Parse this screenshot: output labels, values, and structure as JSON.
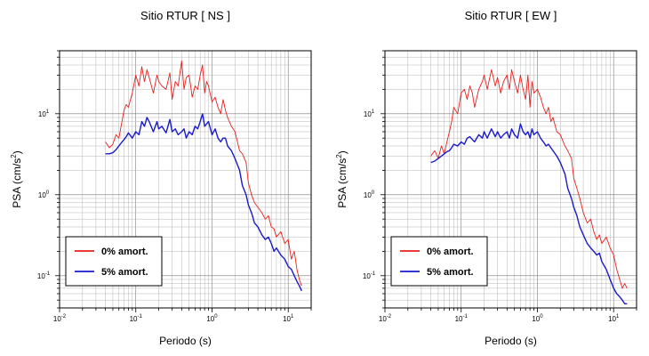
{
  "chart_data": [
    {
      "type": "line",
      "title": "Sitio RTUR [ NS ]",
      "xlabel": "Periodo (s)",
      "ylabel": {
        "base": "PSA (cm/s",
        "exp": "2",
        "close": ")"
      },
      "x_scale": "log",
      "y_scale": "log",
      "xlim": [
        0.01,
        20
      ],
      "ylim": [
        0.04,
        60
      ],
      "xticks": [
        {
          "base": "10",
          "exp": "-2",
          "value": 0.01
        },
        {
          "base": "10",
          "exp": "-1",
          "value": 0.1
        },
        {
          "base": "10",
          "exp": "0",
          "value": 1
        },
        {
          "base": "10",
          "exp": "1",
          "value": 10
        }
      ],
      "yticks": [
        {
          "base": "10",
          "exp": "-1",
          "value": 0.1
        },
        {
          "base": "10",
          "exp": "0",
          "value": 1
        },
        {
          "base": "10",
          "exp": "1",
          "value": 10
        }
      ],
      "grid": true,
      "legend_position": "bottom-left",
      "series": [
        {
          "name": "0% amort.",
          "color": "#e8201e",
          "x": [
            0.04,
            0.045,
            0.05,
            0.055,
            0.06,
            0.065,
            0.07,
            0.075,
            0.08,
            0.09,
            0.1,
            0.11,
            0.12,
            0.13,
            0.14,
            0.15,
            0.17,
            0.19,
            0.2,
            0.22,
            0.25,
            0.28,
            0.3,
            0.33,
            0.36,
            0.4,
            0.43,
            0.46,
            0.5,
            0.55,
            0.6,
            0.65,
            0.7,
            0.75,
            0.8,
            0.85,
            0.9,
            1.0,
            1.1,
            1.2,
            1.3,
            1.4,
            1.5,
            1.6,
            1.8,
            2.0,
            2.3,
            2.5,
            2.8,
            3.0,
            3.3,
            3.6,
            4.0,
            4.5,
            5.0,
            5.5,
            6.0,
            6.5,
            7.0,
            8.0,
            9.0,
            10.0,
            11.0,
            12.0,
            13.0,
            14.0,
            15.0
          ],
          "y": [
            4.5,
            3.8,
            4.2,
            5.5,
            5.0,
            7.5,
            11.0,
            13.0,
            12.0,
            18.0,
            30.0,
            22.0,
            38.0,
            25.0,
            35.0,
            28.0,
            18.0,
            30.0,
            25.0,
            22.0,
            20.0,
            32.0,
            15.0,
            25.0,
            22.0,
            45.0,
            20.0,
            28.0,
            30.0,
            16.0,
            22.0,
            20.0,
            30.0,
            40.0,
            18.0,
            25.0,
            22.0,
            14.0,
            16.0,
            12.0,
            10.0,
            15.0,
            11.0,
            9.0,
            7.0,
            6.0,
            3.5,
            3.2,
            2.5,
            1.4,
            1.0,
            0.8,
            0.7,
            0.6,
            0.5,
            0.55,
            0.4,
            0.38,
            0.3,
            0.35,
            0.25,
            0.28,
            0.16,
            0.2,
            0.12,
            0.09,
            0.075
          ]
        },
        {
          "name": "5% amort.",
          "color": "#1a1acc",
          "x": [
            0.04,
            0.045,
            0.05,
            0.055,
            0.06,
            0.065,
            0.07,
            0.075,
            0.08,
            0.09,
            0.1,
            0.11,
            0.12,
            0.13,
            0.14,
            0.15,
            0.17,
            0.19,
            0.2,
            0.22,
            0.25,
            0.28,
            0.3,
            0.33,
            0.36,
            0.4,
            0.43,
            0.46,
            0.5,
            0.55,
            0.6,
            0.65,
            0.7,
            0.75,
            0.8,
            0.85,
            0.9,
            1.0,
            1.1,
            1.2,
            1.3,
            1.4,
            1.5,
            1.6,
            1.8,
            2.0,
            2.3,
            2.5,
            2.8,
            3.0,
            3.3,
            3.6,
            4.0,
            4.5,
            5.0,
            5.5,
            6.0,
            6.5,
            7.0,
            8.0,
            9.0,
            10.0,
            11.0,
            12.0,
            13.0,
            14.0,
            15.0
          ],
          "y": [
            3.2,
            3.2,
            3.3,
            3.6,
            4.0,
            4.4,
            4.8,
            5.2,
            5.8,
            5.0,
            6.0,
            5.5,
            8.0,
            7.0,
            9.0,
            8.0,
            6.0,
            8.0,
            6.5,
            7.0,
            5.8,
            8.5,
            6.0,
            6.5,
            5.5,
            6.0,
            6.5,
            5.0,
            6.0,
            5.5,
            7.0,
            6.5,
            8.0,
            10.0,
            7.0,
            7.5,
            8.0,
            5.5,
            6.5,
            5.0,
            4.5,
            5.0,
            5.0,
            4.0,
            3.5,
            2.8,
            2.0,
            1.3,
            1.0,
            0.75,
            0.6,
            0.45,
            0.4,
            0.32,
            0.28,
            0.3,
            0.25,
            0.2,
            0.22,
            0.18,
            0.16,
            0.13,
            0.12,
            0.1,
            0.085,
            0.075,
            0.065
          ]
        }
      ]
    },
    {
      "type": "line",
      "title": "Sitio RTUR [ EW ]",
      "xlabel": "Periodo (s)",
      "ylabel": {
        "base": "PSA (cm/s",
        "exp": "2",
        "close": ")"
      },
      "x_scale": "log",
      "y_scale": "log",
      "xlim": [
        0.01,
        20
      ],
      "ylim": [
        0.04,
        60
      ],
      "xticks": [
        {
          "base": "10",
          "exp": "-2",
          "value": 0.01
        },
        {
          "base": "10",
          "exp": "-1",
          "value": 0.1
        },
        {
          "base": "10",
          "exp": "0",
          "value": 1
        },
        {
          "base": "10",
          "exp": "1",
          "value": 10
        }
      ],
      "yticks": [
        {
          "base": "10",
          "exp": "-1",
          "value": 0.1
        },
        {
          "base": "10",
          "exp": "0",
          "value": 1
        },
        {
          "base": "10",
          "exp": "1",
          "value": 10
        }
      ],
      "grid": true,
      "legend_position": "bottom-left",
      "series": [
        {
          "name": "0% amort.",
          "color": "#e8201e",
          "x": [
            0.04,
            0.045,
            0.05,
            0.055,
            0.06,
            0.065,
            0.07,
            0.075,
            0.08,
            0.09,
            0.1,
            0.11,
            0.12,
            0.13,
            0.14,
            0.15,
            0.17,
            0.19,
            0.2,
            0.22,
            0.25,
            0.28,
            0.3,
            0.33,
            0.36,
            0.4,
            0.43,
            0.46,
            0.5,
            0.55,
            0.6,
            0.65,
            0.7,
            0.75,
            0.8,
            0.85,
            0.9,
            1.0,
            1.1,
            1.2,
            1.3,
            1.4,
            1.5,
            1.6,
            1.8,
            2.0,
            2.3,
            2.5,
            2.8,
            3.0,
            3.3,
            3.6,
            4.0,
            4.5,
            5.0,
            5.5,
            6.0,
            6.5,
            7.0,
            8.0,
            9.0,
            10.0,
            11.0,
            12.0,
            13.0,
            14.0,
            15.0
          ],
          "y": [
            3.0,
            3.5,
            2.8,
            4.0,
            3.2,
            4.5,
            6.0,
            8.0,
            12.0,
            10.0,
            18.0,
            20.0,
            15.0,
            22.0,
            18.0,
            12.0,
            20.0,
            25.0,
            30.0,
            20.0,
            35.0,
            22.0,
            28.0,
            18.0,
            25.0,
            30.0,
            20.0,
            35.0,
            25.0,
            18.0,
            30.0,
            20.0,
            15.0,
            30.0,
            12.0,
            25.0,
            18.0,
            20.0,
            16.0,
            12.0,
            10.0,
            12.0,
            8.0,
            9.0,
            6.0,
            5.5,
            4.0,
            3.5,
            2.8,
            1.6,
            1.2,
            0.9,
            0.6,
            0.45,
            0.5,
            0.35,
            0.28,
            0.32,
            0.25,
            0.3,
            0.22,
            0.18,
            0.12,
            0.09,
            0.07,
            0.08,
            0.07
          ]
        },
        {
          "name": "5% amort.",
          "color": "#1a1acc",
          "x": [
            0.04,
            0.045,
            0.05,
            0.055,
            0.06,
            0.065,
            0.07,
            0.075,
            0.08,
            0.09,
            0.1,
            0.11,
            0.12,
            0.13,
            0.14,
            0.15,
            0.17,
            0.19,
            0.2,
            0.22,
            0.25,
            0.28,
            0.3,
            0.33,
            0.36,
            0.4,
            0.43,
            0.46,
            0.5,
            0.55,
            0.6,
            0.65,
            0.7,
            0.75,
            0.8,
            0.85,
            0.9,
            1.0,
            1.1,
            1.2,
            1.3,
            1.4,
            1.5,
            1.6,
            1.8,
            2.0,
            2.3,
            2.5,
            2.8,
            3.0,
            3.3,
            3.6,
            4.0,
            4.5,
            5.0,
            5.5,
            6.0,
            6.5,
            7.0,
            8.0,
            9.0,
            10.0,
            11.0,
            12.0,
            13.0,
            14.0,
            15.0
          ],
          "y": [
            2.5,
            2.6,
            2.8,
            3.0,
            3.2,
            3.4,
            3.5,
            3.8,
            4.2,
            4.0,
            4.5,
            4.2,
            5.0,
            5.2,
            4.8,
            4.5,
            5.5,
            5.0,
            6.0,
            5.0,
            6.5,
            5.2,
            6.0,
            5.0,
            5.5,
            6.0,
            5.0,
            6.5,
            5.5,
            5.0,
            7.5,
            6.0,
            5.5,
            6.0,
            5.0,
            6.5,
            5.5,
            6.0,
            5.0,
            4.5,
            4.0,
            4.2,
            3.8,
            3.5,
            3.0,
            2.5,
            1.8,
            1.2,
            0.9,
            0.7,
            0.55,
            0.4,
            0.32,
            0.25,
            0.22,
            0.2,
            0.18,
            0.19,
            0.15,
            0.12,
            0.09,
            0.07,
            0.06,
            0.055,
            0.05,
            0.045,
            0.045
          ]
        }
      ]
    }
  ]
}
